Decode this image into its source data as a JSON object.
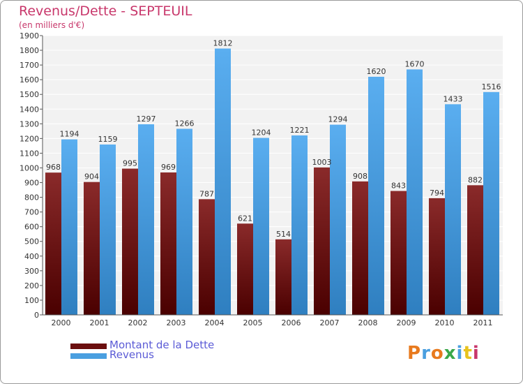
{
  "title": "Revenus/Dette - SEPTEUIL",
  "subtitle": "(en milliers d'€)",
  "logo": "Proxiti",
  "colors": {
    "debt": "#7a1a1a",
    "revenue": "#4a9fe0",
    "title": "#c8376b",
    "legend": "#5b5bd6"
  },
  "chart_data": {
    "type": "bar",
    "title": "Revenus/Dette - SEPTEUIL",
    "ylabel": "(en milliers d'€)",
    "categories": [
      "2000",
      "2001",
      "2002",
      "2003",
      "2004",
      "2005",
      "2006",
      "2007",
      "2008",
      "2009",
      "2010",
      "2011"
    ],
    "series": [
      {
        "name": "Montant de la Dette",
        "values": [
          968,
          904,
          995,
          969,
          787,
          621,
          514,
          1003,
          908,
          843,
          794,
          882
        ]
      },
      {
        "name": "Revenus",
        "values": [
          1194,
          1159,
          1297,
          1266,
          1812,
          1204,
          1221,
          1294,
          1620,
          1670,
          1433,
          1516
        ]
      }
    ],
    "ylim": [
      0,
      1900
    ],
    "yticks": [
      0,
      100,
      200,
      300,
      400,
      500,
      600,
      700,
      800,
      900,
      1000,
      1100,
      1200,
      1300,
      1400,
      1500,
      1600,
      1700,
      1800,
      1900
    ],
    "grid": true,
    "legend": "bottom-left"
  }
}
